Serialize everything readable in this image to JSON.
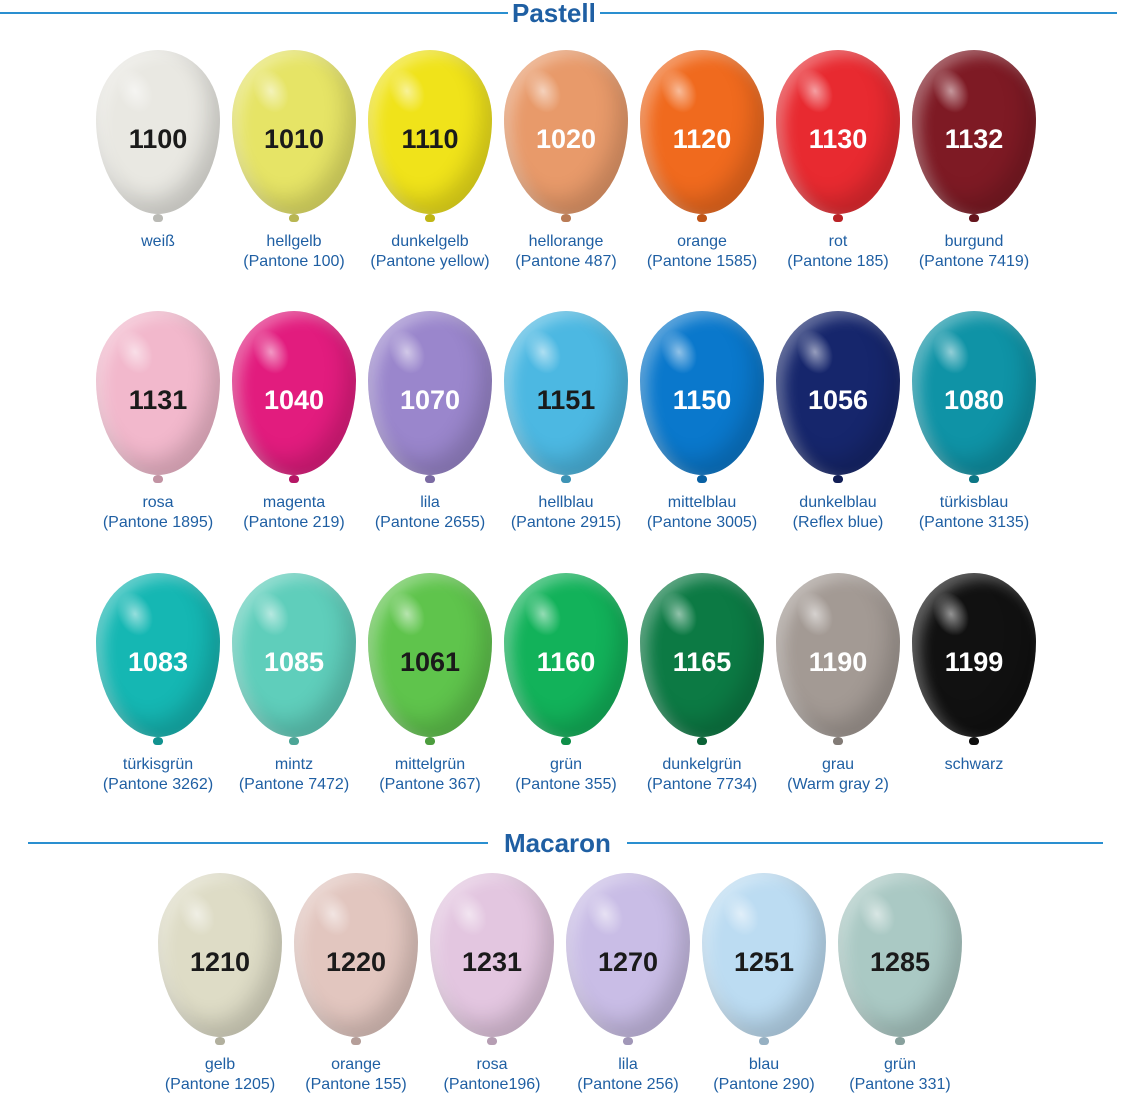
{
  "sections": [
    {
      "title": "Pastell",
      "balloons": [
        {
          "code": "1100",
          "name": "weiß",
          "pantone": "",
          "color": "#e9e8e2",
          "text_color": "#1a1a1a"
        },
        {
          "code": "1010",
          "name": "hellgelb",
          "pantone": "(Pantone 100)",
          "color": "#e6e466",
          "text_color": "#1a1a1a"
        },
        {
          "code": "1110",
          "name": "dunkelgelb",
          "pantone": "(Pantone yellow)",
          "color": "#f0e31a",
          "text_color": "#1a1a1a"
        },
        {
          "code": "1020",
          "name": "hellorange",
          "pantone": "(Pantone 487)",
          "color": "#e89a6a",
          "text_color": "#ffffff"
        },
        {
          "code": "1120",
          "name": "orange",
          "pantone": "(Pantone 1585)",
          "color": "#f06a1e",
          "text_color": "#ffffff"
        },
        {
          "code": "1130",
          "name": "rot",
          "pantone": "(Pantone 185)",
          "color": "#e82a30",
          "text_color": "#ffffff"
        },
        {
          "code": "1132",
          "name": "burgund",
          "pantone": "(Pantone 7419)",
          "color": "#7e1a24",
          "text_color": "#ffffff"
        },
        {
          "code": "1131",
          "name": "rosa",
          "pantone": "(Pantone 1895)",
          "color": "#f2b8cc",
          "text_color": "#1a1a1a"
        },
        {
          "code": "1040",
          "name": "magenta",
          "pantone": "(Pantone 219)",
          "color": "#e21c7e",
          "text_color": "#ffffff"
        },
        {
          "code": "1070",
          "name": "lila",
          "pantone": "(Pantone 2655)",
          "color": "#9a86cc",
          "text_color": "#ffffff"
        },
        {
          "code": "1151",
          "name": "hellblau",
          "pantone": "(Pantone 2915)",
          "color": "#4cb8e2",
          "text_color": "#1a1a1a"
        },
        {
          "code": "1150",
          "name": "mittelblau",
          "pantone": "(Pantone 3005)",
          "color": "#0a78cc",
          "text_color": "#ffffff"
        },
        {
          "code": "1056",
          "name": "dunkelblau",
          "pantone": "(Reflex blue)",
          "color": "#16266c",
          "text_color": "#ffffff"
        },
        {
          "code": "1080",
          "name": "türkisblau",
          "pantone": "(Pantone 3135)",
          "color": "#0f93a6",
          "text_color": "#ffffff"
        },
        {
          "code": "1083",
          "name": "türkisgrün",
          "pantone": "(Pantone 3262)",
          "color": "#15b7b3",
          "text_color": "#ffffff"
        },
        {
          "code": "1085",
          "name": "mintz",
          "pantone": "(Pantone 7472)",
          "color": "#5fcebb",
          "text_color": "#ffffff"
        },
        {
          "code": "1061",
          "name": "mittelgrün",
          "pantone": "(Pantone 367)",
          "color": "#5fc44c",
          "text_color": "#1a1a1a"
        },
        {
          "code": "1160",
          "name": "grün",
          "pantone": "(Pantone 355)",
          "color": "#12b25a",
          "text_color": "#ffffff"
        },
        {
          "code": "1165",
          "name": "dunkelgrün",
          "pantone": "(Pantone 7734)",
          "color": "#0c7a44",
          "text_color": "#ffffff"
        },
        {
          "code": "1190",
          "name": "grau",
          "pantone": "(Warm gray 2)",
          "color": "#a39a94",
          "text_color": "#ffffff"
        },
        {
          "code": "1199",
          "name": "schwarz",
          "pantone": "",
          "color": "#111111",
          "text_color": "#ffffff"
        }
      ]
    },
    {
      "title": "Macaron",
      "balloons": [
        {
          "code": "1210",
          "name": "gelb",
          "pantone": "(Pantone 1205)",
          "color": "#dedcc6",
          "text_color": "#1a1a1a"
        },
        {
          "code": "1220",
          "name": "orange",
          "pantone": "(Pantone 155)",
          "color": "#e2c6bf",
          "text_color": "#1a1a1a"
        },
        {
          "code": "1231",
          "name": "rosa",
          "pantone": "(Pantone196)",
          "color": "#e3c6e0",
          "text_color": "#1a1a1a"
        },
        {
          "code": "1270",
          "name": "lila",
          "pantone": "(Pantone 256)",
          "color": "#c9bde6",
          "text_color": "#1a1a1a"
        },
        {
          "code": "1251",
          "name": "blau",
          "pantone": "(Pantone 290)",
          "color": "#bcdcf2",
          "text_color": "#1a1a1a"
        },
        {
          "code": "1285",
          "name": "grün",
          "pantone": "(Pantone 331)",
          "color": "#aac9c4",
          "text_color": "#1a1a1a"
        }
      ]
    }
  ]
}
